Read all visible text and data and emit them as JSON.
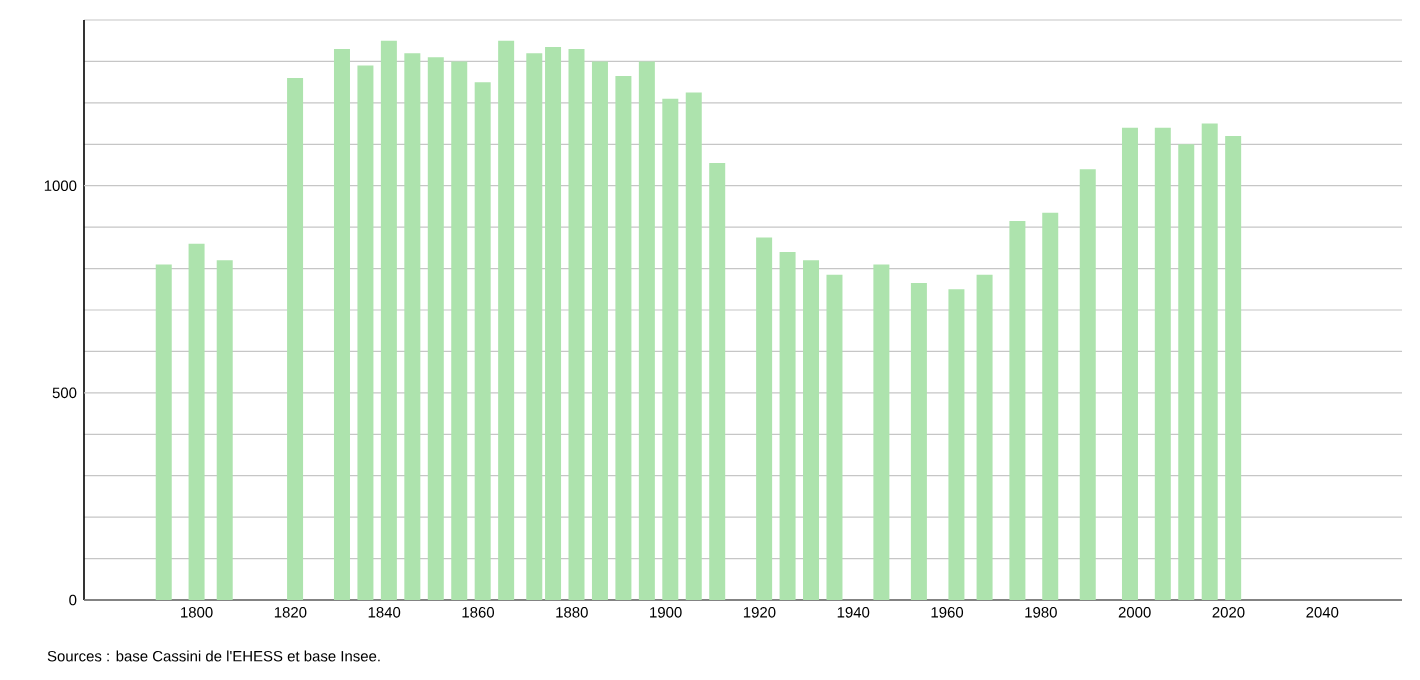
{
  "chart_data": {
    "type": "bar",
    "x": [
      1793,
      1800,
      1806,
      1821,
      1831,
      1836,
      1841,
      1846,
      1851,
      1856,
      1861,
      1866,
      1872,
      1876,
      1881,
      1886,
      1891,
      1896,
      1901,
      1906,
      1911,
      1921,
      1926,
      1931,
      1936,
      1946,
      1954,
      1962,
      1968,
      1975,
      1982,
      1990,
      1999,
      2006,
      2011,
      2016,
      2021
    ],
    "values": [
      810,
      860,
      820,
      1260,
      1330,
      1290,
      1350,
      1320,
      1310,
      1300,
      1250,
      1350,
      1320,
      1335,
      1330,
      1300,
      1265,
      1300,
      1210,
      1225,
      1055,
      875,
      840,
      820,
      785,
      810,
      765,
      750,
      785,
      915,
      935,
      1040,
      1140,
      1140,
      1100,
      1150,
      1120
    ],
    "color": "#ade3ad",
    "xlim": [
      1776,
      2057
    ],
    "ylim": [
      0,
      1400
    ],
    "xticks": [
      1800,
      1820,
      1840,
      1860,
      1880,
      1900,
      1920,
      1940,
      1960,
      1980,
      2000,
      2020,
      2040
    ],
    "yticks": [
      0,
      {
        "value": 100,
        "label": null
      },
      {
        "value": 200,
        "label": null
      },
      {
        "value": 300,
        "label": null
      },
      {
        "value": 400,
        "label": null
      },
      500,
      {
        "value": 600,
        "label": null
      },
      {
        "value": 700,
        "label": null
      },
      {
        "value": 800,
        "label": null
      },
      {
        "value": 900,
        "label": null
      },
      1000,
      {
        "value": 1100,
        "label": null
      },
      {
        "value": 1200,
        "label": null
      },
      {
        "value": 1300,
        "label": null
      },
      {
        "value": 1400,
        "label": null
      }
    ],
    "grid": "y",
    "annotations": [
      "Sources : base Cassini de l'EHESS et base Insee."
    ]
  }
}
